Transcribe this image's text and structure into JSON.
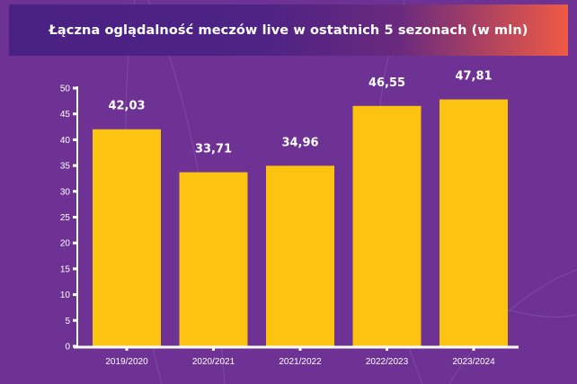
{
  "chart_data": {
    "type": "bar",
    "title": "Łączna oglądalność meczów live w ostatnich 5 sezonach (w mln)",
    "categories": [
      "2019/2020",
      "2020/2021",
      "2021/2022",
      "2022/2023",
      "2023/2024"
    ],
    "values": [
      42.03,
      33.71,
      34.96,
      46.55,
      47.81
    ],
    "value_labels": [
      "42,03",
      "33,71",
      "34,96",
      "46,55",
      "47,81"
    ],
    "ylim": [
      0,
      50
    ],
    "yticks": [
      0,
      5,
      10,
      15,
      20,
      25,
      30,
      35,
      40,
      45,
      50
    ],
    "xlabel": "",
    "ylabel": "",
    "grid": false,
    "colors": {
      "bar": "#fdc311",
      "background": "#6d3294",
      "axis": "#ffffff"
    }
  }
}
